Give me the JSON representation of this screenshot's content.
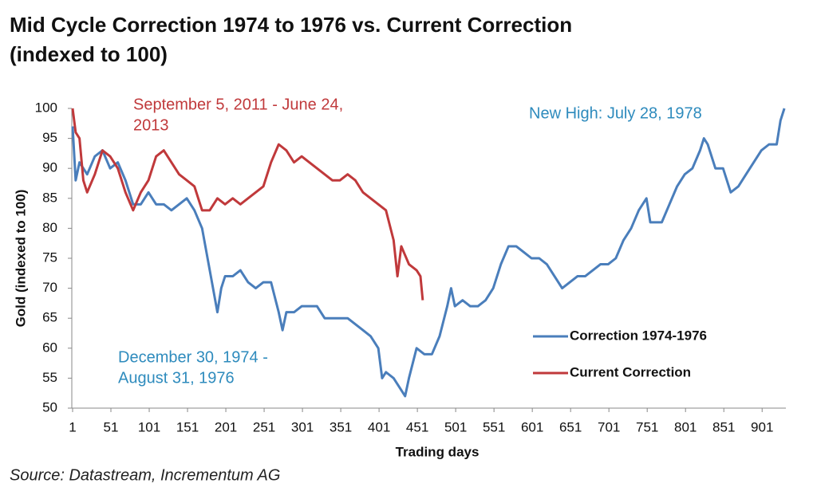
{
  "chart_data": {
    "type": "line",
    "title": [
      "Mid Cycle Correction 1974 to 1976 vs. Current Correction",
      "(indexed to 100)"
    ],
    "x_label": "Trading days",
    "y_label": "Gold (indexed to 100)",
    "source": "Source: Datastream, Incrementum AG",
    "xlim": [
      1,
      932
    ],
    "xticks": [
      1,
      51,
      101,
      151,
      201,
      251,
      301,
      351,
      401,
      451,
      501,
      551,
      601,
      651,
      701,
      751,
      801,
      851,
      901
    ],
    "ylim": [
      50,
      100
    ],
    "yticks": [
      50,
      55,
      60,
      65,
      70,
      75,
      80,
      85,
      90,
      95,
      100
    ],
    "grid": false,
    "legend": "right",
    "annotations": [
      {
        "lines": [
          "September 5, 2011 -  June 24,",
          "2013"
        ],
        "color": "#c0393b"
      },
      {
        "lines": [
          "New High: July 28, 1978"
        ],
        "color": "#2e8bbd"
      },
      {
        "lines": [
          "December 30, 1974 -",
          "August 31, 1976"
        ],
        "color": "#2e8bbd"
      }
    ],
    "series": [
      {
        "name": "Correction 1974-1976",
        "color": "#4a7ebb",
        "x": [
          1,
          5,
          10,
          20,
          30,
          40,
          50,
          60,
          70,
          80,
          90,
          100,
          110,
          120,
          130,
          140,
          150,
          160,
          170,
          180,
          190,
          195,
          200,
          210,
          220,
          230,
          240,
          250,
          260,
          270,
          275,
          280,
          290,
          300,
          310,
          320,
          330,
          340,
          350,
          360,
          370,
          380,
          390,
          400,
          405,
          410,
          420,
          430,
          435,
          440,
          450,
          460,
          470,
          480,
          490,
          495,
          500,
          510,
          520,
          530,
          540,
          550,
          560,
          570,
          580,
          590,
          600,
          610,
          620,
          630,
          640,
          650,
          660,
          670,
          680,
          690,
          700,
          710,
          720,
          730,
          740,
          750,
          755,
          760,
          770,
          780,
          790,
          800,
          810,
          820,
          825,
          830,
          840,
          850,
          860,
          870,
          880,
          890,
          900,
          910,
          920,
          925,
          930
        ],
        "values": [
          97,
          88,
          91,
          89,
          92,
          93,
          90,
          91,
          88,
          84,
          84,
          86,
          84,
          84,
          83,
          84,
          85,
          83,
          80,
          73,
          66,
          70,
          72,
          72,
          73,
          71,
          70,
          71,
          71,
          66,
          63,
          66,
          66,
          67,
          67,
          67,
          65,
          65,
          65,
          65,
          64,
          63,
          62,
          60,
          55,
          56,
          55,
          53,
          52,
          55,
          60,
          59,
          59,
          62,
          67,
          70,
          67,
          68,
          67,
          67,
          68,
          70,
          74,
          77,
          77,
          76,
          75,
          75,
          74,
          72,
          70,
          71,
          72,
          72,
          73,
          74,
          74,
          75,
          78,
          80,
          83,
          85,
          81,
          81,
          81,
          84,
          87,
          89,
          90,
          93,
          95,
          94,
          90,
          90,
          86,
          87,
          89,
          91,
          93,
          94,
          94,
          98,
          100
        ]
      },
      {
        "name": "Current Correction",
        "color": "#c0393b",
        "x": [
          1,
          5,
          10,
          15,
          20,
          30,
          40,
          50,
          60,
          70,
          80,
          90,
          100,
          110,
          120,
          130,
          140,
          150,
          160,
          170,
          180,
          190,
          200,
          210,
          220,
          230,
          240,
          250,
          260,
          270,
          280,
          290,
          300,
          310,
          320,
          330,
          340,
          350,
          360,
          370,
          380,
          390,
          400,
          410,
          420,
          425,
          430,
          440,
          450,
          455,
          458
        ],
        "values": [
          100,
          96,
          95,
          88,
          86,
          89,
          93,
          92,
          90,
          86,
          83,
          86,
          88,
          92,
          93,
          91,
          89,
          88,
          87,
          83,
          83,
          85,
          84,
          85,
          84,
          85,
          86,
          87,
          91,
          94,
          93,
          91,
          92,
          91,
          90,
          89,
          88,
          88,
          89,
          88,
          86,
          85,
          84,
          83,
          78,
          72,
          77,
          74,
          73,
          72,
          68
        ]
      }
    ]
  }
}
